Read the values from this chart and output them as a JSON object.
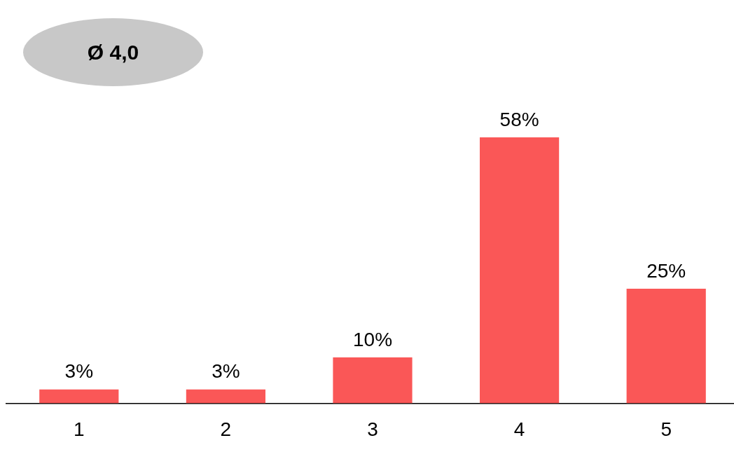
{
  "chart_data": {
    "type": "bar",
    "categories": [
      "1",
      "2",
      "3",
      "4",
      "5"
    ],
    "values": [
      3,
      3,
      10,
      58,
      25
    ],
    "value_labels": [
      "3%",
      "3%",
      "10%",
      "58%",
      "25%"
    ],
    "color": "#fa5757",
    "annotations": [
      "Ø 4,0"
    ],
    "grid": false,
    "legend": false
  }
}
